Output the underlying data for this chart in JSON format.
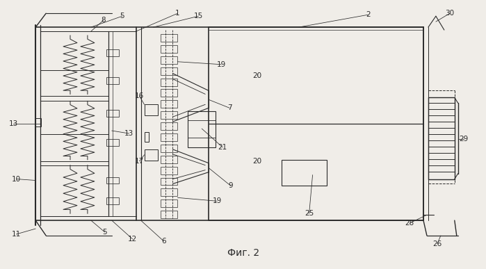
{
  "bg_color": "#f0ede8",
  "line_color": "#2a2a2a",
  "title": "Фиг. 2"
}
